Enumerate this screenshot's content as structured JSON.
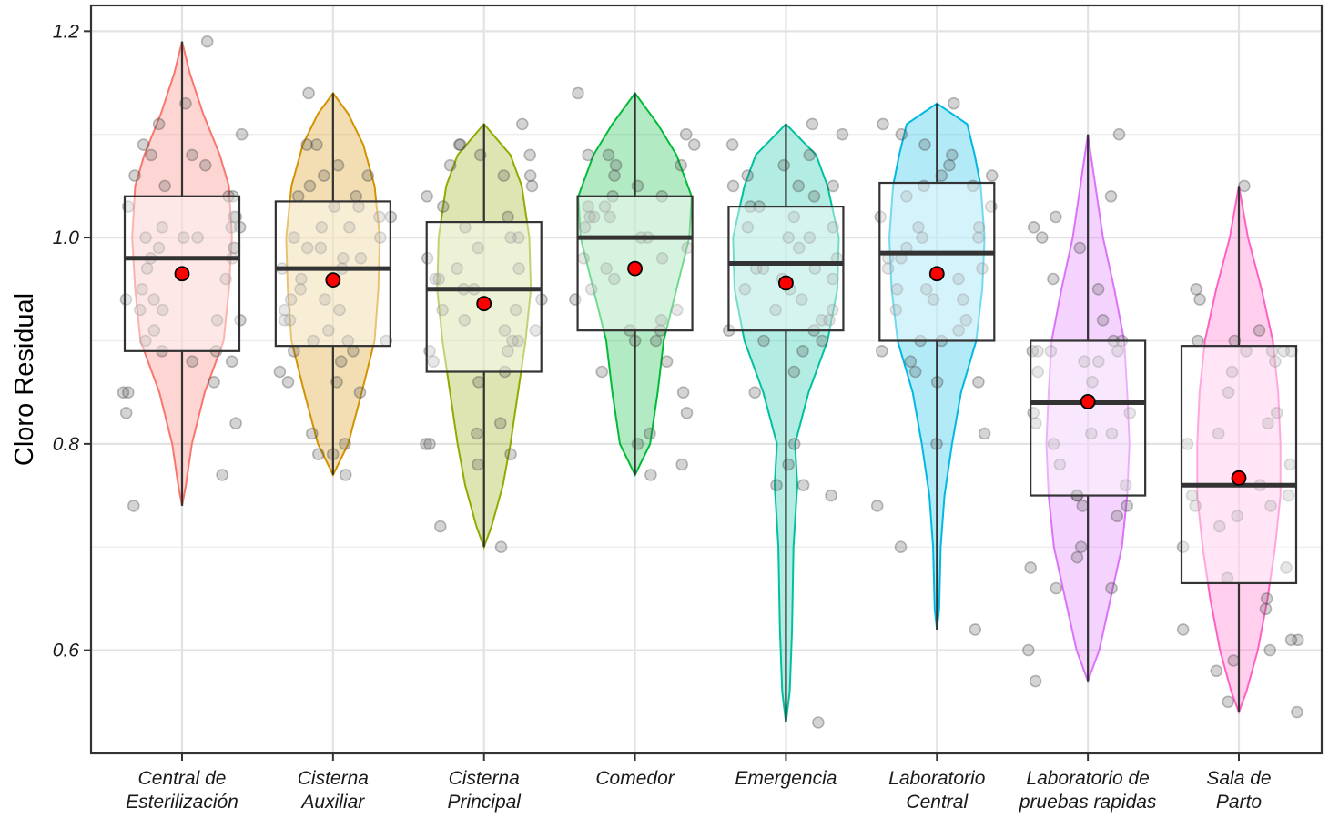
{
  "chart_data": {
    "type": "violin",
    "title": "",
    "xlabel": "",
    "ylabel": "Cloro Residual",
    "ylim": [
      0.5,
      1.225
    ],
    "yticks": [
      0.6,
      0.8,
      1.0,
      1.2
    ],
    "ytick_labels": [
      "0.6",
      "0.8",
      "1.0",
      "1.2"
    ],
    "grid": true,
    "legend": "none",
    "mean_marker_color": "#ff0000",
    "categories": [
      {
        "label_lines": [
          "Central de",
          "Esterilización"
        ],
        "color": "#f8766d",
        "min": 0.74,
        "q1": 0.89,
        "median": 0.98,
        "q3": 1.04,
        "max": 1.19,
        "mean": 0.965,
        "density": [
          [
            0.74,
            0.0
          ],
          [
            0.76,
            0.05
          ],
          [
            0.8,
            0.13
          ],
          [
            0.85,
            0.3
          ],
          [
            0.9,
            0.55
          ],
          [
            0.95,
            0.62
          ],
          [
            1.0,
            0.66
          ],
          [
            1.05,
            0.62
          ],
          [
            1.08,
            0.5
          ],
          [
            1.12,
            0.28
          ],
          [
            1.16,
            0.1
          ],
          [
            1.19,
            0.0
          ]
        ],
        "points": [
          0.74,
          0.77,
          0.82,
          0.83,
          0.85,
          0.85,
          0.86,
          0.88,
          0.88,
          0.89,
          0.89,
          0.9,
          0.91,
          0.92,
          0.92,
          0.93,
          0.93,
          0.94,
          0.94,
          0.95,
          0.96,
          0.97,
          0.98,
          0.98,
          0.99,
          0.99,
          0.99,
          1.0,
          1.0,
          1.0,
          1.01,
          1.01,
          1.01,
          1.02,
          1.02,
          1.03,
          1.04,
          1.04,
          1.05,
          1.06,
          1.07,
          1.08,
          1.08,
          1.09,
          1.1,
          1.11,
          1.13,
          1.19
        ]
      },
      {
        "label_lines": [
          "Cisterna",
          "Auxiliar"
        ],
        "color": "#d39200",
        "min": 0.77,
        "q1": 0.895,
        "median": 0.97,
        "q3": 1.035,
        "max": 1.14,
        "mean": 0.959,
        "density": [
          [
            0.77,
            0.0
          ],
          [
            0.8,
            0.2
          ],
          [
            0.85,
            0.38
          ],
          [
            0.9,
            0.55
          ],
          [
            0.95,
            0.6
          ],
          [
            1.0,
            0.62
          ],
          [
            1.05,
            0.55
          ],
          [
            1.09,
            0.4
          ],
          [
            1.12,
            0.2
          ],
          [
            1.14,
            0.0
          ]
        ],
        "points": [
          0.77,
          0.79,
          0.79,
          0.8,
          0.81,
          0.85,
          0.86,
          0.86,
          0.87,
          0.88,
          0.89,
          0.89,
          0.9,
          0.9,
          0.9,
          0.91,
          0.92,
          0.92,
          0.93,
          0.93,
          0.94,
          0.94,
          0.95,
          0.96,
          0.97,
          0.97,
          0.98,
          0.98,
          0.99,
          0.99,
          1.0,
          1.0,
          1.01,
          1.01,
          1.02,
          1.02,
          1.03,
          1.03,
          1.04,
          1.04,
          1.05,
          1.06,
          1.06,
          1.07,
          1.09,
          1.09,
          1.14
        ]
      },
      {
        "label_lines": [
          "Cisterna",
          "Principal"
        ],
        "color": "#93aa00",
        "min": 0.7,
        "q1": 0.87,
        "median": 0.95,
        "q3": 1.015,
        "max": 1.11,
        "mean": 0.936,
        "density": [
          [
            0.7,
            0.0
          ],
          [
            0.72,
            0.1
          ],
          [
            0.76,
            0.25
          ],
          [
            0.8,
            0.35
          ],
          [
            0.85,
            0.45
          ],
          [
            0.9,
            0.55
          ],
          [
            0.95,
            0.62
          ],
          [
            1.0,
            0.6
          ],
          [
            1.05,
            0.5
          ],
          [
            1.08,
            0.35
          ],
          [
            1.11,
            0.0
          ]
        ],
        "points": [
          0.7,
          0.72,
          0.78,
          0.79,
          0.8,
          0.8,
          0.81,
          0.82,
          0.86,
          0.87,
          0.88,
          0.89,
          0.89,
          0.9,
          0.9,
          0.91,
          0.91,
          0.92,
          0.93,
          0.93,
          0.94,
          0.95,
          0.95,
          0.96,
          0.96,
          0.97,
          0.97,
          0.98,
          0.99,
          1.0,
          1.0,
          1.01,
          1.02,
          1.03,
          1.04,
          1.05,
          1.06,
          1.06,
          1.07,
          1.08,
          1.08,
          1.09,
          1.09,
          1.11
        ]
      },
      {
        "label_lines": [
          "Comedor"
        ],
        "color": "#00ba38",
        "min": 0.77,
        "q1": 0.91,
        "median": 1.0,
        "q3": 1.04,
        "max": 1.14,
        "mean": 0.97,
        "density": [
          [
            0.77,
            0.0
          ],
          [
            0.8,
            0.2
          ],
          [
            0.85,
            0.3
          ],
          [
            0.9,
            0.38
          ],
          [
            0.95,
            0.55
          ],
          [
            1.0,
            0.72
          ],
          [
            1.04,
            0.75
          ],
          [
            1.08,
            0.55
          ],
          [
            1.11,
            0.3
          ],
          [
            1.14,
            0.0
          ]
        ],
        "points": [
          0.77,
          0.78,
          0.8,
          0.81,
          0.83,
          0.85,
          0.87,
          0.88,
          0.9,
          0.9,
          0.91,
          0.91,
          0.92,
          0.93,
          0.94,
          0.95,
          0.96,
          0.97,
          0.98,
          0.98,
          0.99,
          1.0,
          1.0,
          1.01,
          1.02,
          1.02,
          1.02,
          1.03,
          1.03,
          1.04,
          1.04,
          1.05,
          1.06,
          1.07,
          1.07,
          1.08,
          1.08,
          1.09,
          1.1,
          1.14
        ]
      },
      {
        "label_lines": [
          "Emergencia"
        ],
        "color": "#00c19f",
        "min": 0.53,
        "q1": 0.91,
        "median": 0.975,
        "q3": 1.03,
        "max": 1.11,
        "mean": 0.956,
        "density": [
          [
            0.53,
            0.0
          ],
          [
            0.56,
            0.05
          ],
          [
            0.62,
            0.08
          ],
          [
            0.7,
            0.1
          ],
          [
            0.76,
            0.15
          ],
          [
            0.8,
            0.12
          ],
          [
            0.85,
            0.3
          ],
          [
            0.9,
            0.55
          ],
          [
            0.95,
            0.68
          ],
          [
            1.0,
            0.7
          ],
          [
            1.05,
            0.55
          ],
          [
            1.08,
            0.4
          ],
          [
            1.11,
            0.0
          ]
        ],
        "points": [
          0.53,
          0.75,
          0.76,
          0.76,
          0.78,
          0.8,
          0.85,
          0.87,
          0.89,
          0.9,
          0.9,
          0.91,
          0.91,
          0.92,
          0.92,
          0.93,
          0.93,
          0.94,
          0.95,
          0.95,
          0.96,
          0.96,
          0.97,
          0.97,
          0.97,
          0.98,
          0.99,
          1.0,
          1.0,
          1.01,
          1.01,
          1.02,
          1.03,
          1.03,
          1.04,
          1.05,
          1.05,
          1.05,
          1.06,
          1.07,
          1.08,
          1.09,
          1.1,
          1.11
        ]
      },
      {
        "label_lines": [
          "Laboratorio",
          "Central"
        ],
        "color": "#00b9e3",
        "min": 0.62,
        "q1": 0.9,
        "median": 0.985,
        "q3": 1.053,
        "max": 1.13,
        "mean": 0.965,
        "density": [
          [
            0.62,
            0.0
          ],
          [
            0.64,
            0.03
          ],
          [
            0.7,
            0.05
          ],
          [
            0.75,
            0.1
          ],
          [
            0.8,
            0.2
          ],
          [
            0.85,
            0.32
          ],
          [
            0.9,
            0.52
          ],
          [
            0.95,
            0.6
          ],
          [
            1.0,
            0.63
          ],
          [
            1.05,
            0.58
          ],
          [
            1.08,
            0.5
          ],
          [
            1.11,
            0.4
          ],
          [
            1.13,
            0.0
          ]
        ],
        "points": [
          0.62,
          0.7,
          0.74,
          0.8,
          0.81,
          0.86,
          0.86,
          0.87,
          0.88,
          0.89,
          0.9,
          0.9,
          0.91,
          0.92,
          0.93,
          0.94,
          0.94,
          0.95,
          0.95,
          0.96,
          0.97,
          0.97,
          0.98,
          0.98,
          0.99,
          1.0,
          1.0,
          1.01,
          1.01,
          1.02,
          1.03,
          1.04,
          1.05,
          1.05,
          1.06,
          1.06,
          1.07,
          1.08,
          1.09,
          1.1,
          1.11,
          1.13
        ]
      },
      {
        "label_lines": [
          "Laboratorio de",
          "pruebas rapidas"
        ],
        "color": "#db72fb",
        "min": 0.57,
        "q1": 0.75,
        "median": 0.84,
        "q3": 0.9,
        "max": 1.1,
        "mean": 0.841,
        "density": [
          [
            0.57,
            0.0
          ],
          [
            0.6,
            0.15
          ],
          [
            0.65,
            0.3
          ],
          [
            0.7,
            0.45
          ],
          [
            0.75,
            0.52
          ],
          [
            0.8,
            0.55
          ],
          [
            0.85,
            0.52
          ],
          [
            0.9,
            0.48
          ],
          [
            0.95,
            0.35
          ],
          [
            1.0,
            0.2
          ],
          [
            1.05,
            0.1
          ],
          [
            1.1,
            0.0
          ]
        ],
        "points": [
          0.57,
          0.6,
          0.66,
          0.66,
          0.68,
          0.69,
          0.7,
          0.73,
          0.74,
          0.74,
          0.75,
          0.75,
          0.76,
          0.78,
          0.8,
          0.81,
          0.81,
          0.82,
          0.83,
          0.83,
          0.84,
          0.86,
          0.87,
          0.88,
          0.88,
          0.89,
          0.89,
          0.89,
          0.89,
          0.9,
          0.9,
          0.92,
          0.95,
          0.96,
          0.99,
          1.0,
          1.01,
          1.02,
          1.04,
          1.1
        ]
      },
      {
        "label_lines": [
          "Sala de",
          "Parto"
        ],
        "color": "#ff61c3",
        "min": 0.54,
        "q1": 0.665,
        "median": 0.76,
        "q3": 0.895,
        "max": 1.05,
        "mean": 0.767,
        "density": [
          [
            0.54,
            0.0
          ],
          [
            0.56,
            0.1
          ],
          [
            0.6,
            0.25
          ],
          [
            0.65,
            0.38
          ],
          [
            0.7,
            0.48
          ],
          [
            0.75,
            0.55
          ],
          [
            0.8,
            0.55
          ],
          [
            0.85,
            0.52
          ],
          [
            0.9,
            0.45
          ],
          [
            0.95,
            0.3
          ],
          [
            1.0,
            0.12
          ],
          [
            1.05,
            0.0
          ]
        ],
        "points": [
          0.54,
          0.55,
          0.58,
          0.59,
          0.6,
          0.61,
          0.61,
          0.62,
          0.64,
          0.65,
          0.67,
          0.68,
          0.7,
          0.72,
          0.73,
          0.74,
          0.74,
          0.75,
          0.75,
          0.76,
          0.78,
          0.8,
          0.81,
          0.82,
          0.83,
          0.85,
          0.87,
          0.88,
          0.89,
          0.89,
          0.89,
          0.89,
          0.9,
          0.9,
          0.91,
          0.94,
          0.95,
          1.05
        ]
      }
    ]
  }
}
